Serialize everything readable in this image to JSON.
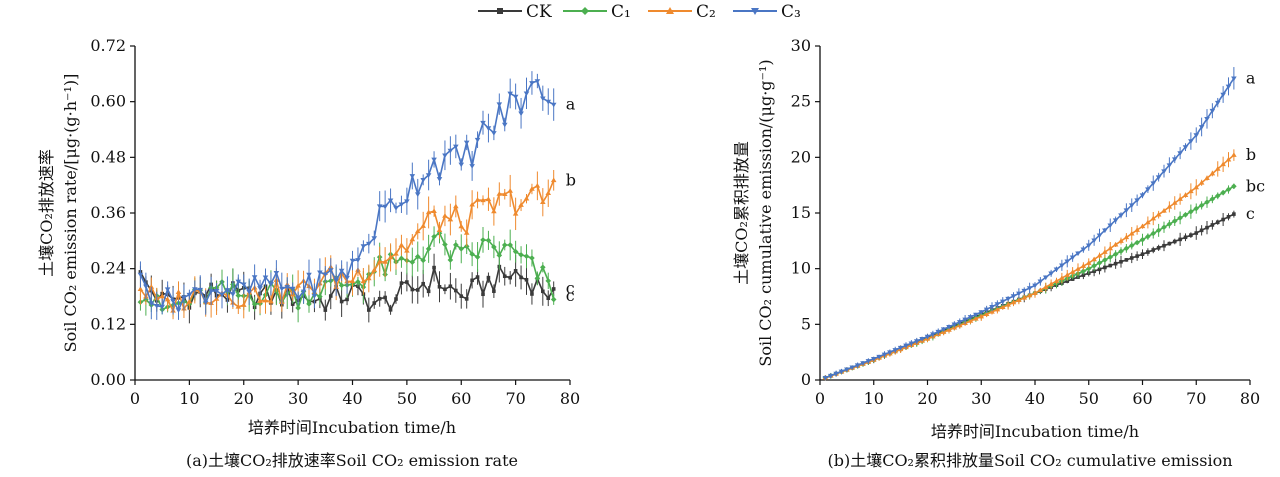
{
  "legend": [
    {
      "name": "CK",
      "color": "#3a3a3a",
      "marker": "square"
    },
    {
      "name": "C₁",
      "color": "#4caf50",
      "marker": "diamond"
    },
    {
      "name": "C₂",
      "color": "#ef8a2e",
      "marker": "triangle-up"
    },
    {
      "name": "C₃",
      "color": "#4a76c4",
      "marker": "triangle-down"
    }
  ],
  "chart_data": [
    {
      "type": "line",
      "caption": "(a)土壤CO₂排放速率Soil  CO₂ emission rate",
      "xlabel": "培养时间Incubation time/h",
      "ylabel_cn": "土壤CO₂排放速率",
      "ylabel_en": "Soil CO₂ emission rate/[μg·(g·h⁻¹)]",
      "xlim": [
        0,
        80
      ],
      "ylim": [
        0,
        0.72
      ],
      "xticks": [
        0,
        10,
        20,
        30,
        40,
        50,
        60,
        70,
        80
      ],
      "yticks": [
        "0.00",
        "0.12",
        "0.24",
        "0.36",
        "0.48",
        "0.60",
        "0.72"
      ],
      "grid": false,
      "x": [
        1,
        5,
        10,
        15,
        20,
        25,
        30,
        35,
        40,
        45,
        50,
        55,
        60,
        65,
        70,
        75,
        77
      ],
      "series": [
        {
          "name": "CK",
          "values": [
            0.22,
            0.17,
            0.18,
            0.19,
            0.18,
            0.18,
            0.18,
            0.17,
            0.19,
            0.16,
            0.19,
            0.22,
            0.18,
            0.21,
            0.23,
            0.2,
            0.18
          ],
          "end_label": "c"
        },
        {
          "name": "C₁",
          "values": [
            0.19,
            0.15,
            0.17,
            0.19,
            0.18,
            0.19,
            0.18,
            0.2,
            0.21,
            0.24,
            0.25,
            0.3,
            0.26,
            0.29,
            0.27,
            0.22,
            0.19
          ],
          "end_label": "c"
        },
        {
          "name": "C₂",
          "values": [
            0.2,
            0.16,
            0.18,
            0.19,
            0.18,
            0.19,
            0.19,
            0.22,
            0.22,
            0.26,
            0.29,
            0.35,
            0.34,
            0.37,
            0.39,
            0.39,
            0.41
          ],
          "end_label": "b"
        },
        {
          "name": "C₃",
          "values": [
            0.21,
            0.17,
            0.18,
            0.2,
            0.19,
            0.21,
            0.19,
            0.22,
            0.24,
            0.35,
            0.41,
            0.47,
            0.47,
            0.54,
            0.6,
            0.63,
            0.62
          ],
          "end_label": "a"
        }
      ]
    },
    {
      "type": "line",
      "caption": "(b)土壤CO₂累积排放量Soil  CO₂ cumulative emission",
      "xlabel": "培养时间Incubation time/h",
      "ylabel_cn": "土壤CO₂累积排放量",
      "ylabel_en": "Soil CO₂ cumulative emission/(μg·g⁻¹)",
      "xlim": [
        0,
        80
      ],
      "ylim": [
        0,
        30
      ],
      "xticks": [
        0,
        10,
        20,
        30,
        40,
        50,
        60,
        70,
        80
      ],
      "yticks": [
        "0",
        "5",
        "10",
        "15",
        "20",
        "25",
        "30"
      ],
      "grid": false,
      "x": [
        1,
        10,
        20,
        30,
        40,
        50,
        60,
        70,
        77
      ],
      "series": [
        {
          "name": "CK",
          "values": [
            0.2,
            1.8,
            3.8,
            5.9,
            7.8,
            9.6,
            11.3,
            13.2,
            14.9
          ],
          "end_label": "c"
        },
        {
          "name": "C₁",
          "values": [
            0.2,
            1.8,
            3.7,
            5.8,
            7.8,
            10.0,
            12.6,
            15.4,
            17.4
          ],
          "end_label": "bc"
        },
        {
          "name": "C₂",
          "values": [
            0.2,
            1.8,
            3.7,
            5.7,
            7.8,
            10.5,
            13.8,
            17.3,
            20.2
          ],
          "end_label": "b"
        },
        {
          "name": "C₃",
          "values": [
            0.2,
            1.9,
            3.9,
            6.1,
            8.5,
            12.1,
            16.6,
            22.0,
            27.1
          ],
          "end_label": "a"
        }
      ]
    }
  ]
}
